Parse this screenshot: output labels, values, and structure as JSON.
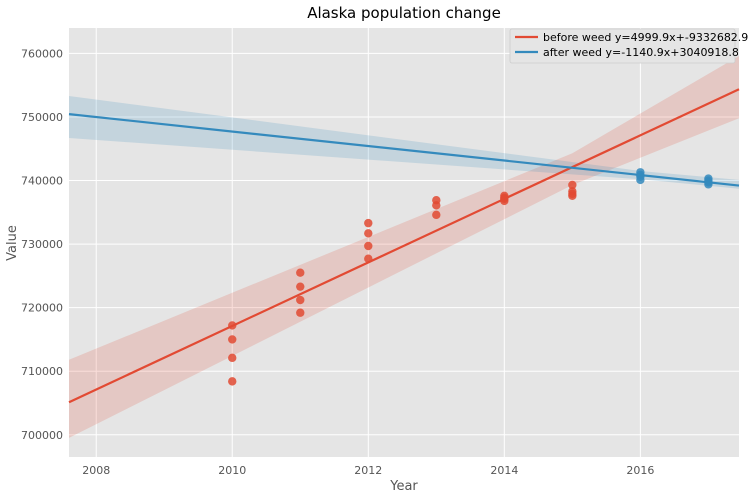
{
  "chart_data": {
    "type": "scatter",
    "title": "Alaska population change",
    "xlabel": "Year",
    "ylabel": "Value",
    "xlim": [
      2007.6,
      2017.45
    ],
    "ylim": [
      696500,
      764000
    ],
    "x_ticks": [
      2008,
      2010,
      2012,
      2014,
      2016
    ],
    "y_ticks": [
      700000,
      710000,
      720000,
      730000,
      740000,
      750000,
      760000
    ],
    "grid": true,
    "legend_position": "top-right",
    "series": [
      {
        "name": "before weed y=4999.9x+-9332682.9",
        "color": "#E24A33",
        "points": [
          [
            2010,
            717200
          ],
          [
            2010,
            715000
          ],
          [
            2010,
            712100
          ],
          [
            2010,
            708400
          ],
          [
            2011,
            725500
          ],
          [
            2011,
            723300
          ],
          [
            2011,
            721200
          ],
          [
            2011,
            719200
          ],
          [
            2012,
            733300
          ],
          [
            2012,
            731700
          ],
          [
            2012,
            729700
          ],
          [
            2012,
            727700
          ],
          [
            2013,
            736900
          ],
          [
            2013,
            736100
          ],
          [
            2013,
            734600
          ],
          [
            2014,
            737600
          ],
          [
            2014,
            737300
          ],
          [
            2014,
            737100
          ],
          [
            2014,
            736800
          ],
          [
            2015,
            739300
          ],
          [
            2015,
            738300
          ],
          [
            2015,
            737900
          ],
          [
            2015,
            737600
          ]
        ],
        "fit": {
          "slope": 4999.9,
          "intercept": -9332682.9
        },
        "band": [
          [
            2007.6,
            699500,
            711800
          ],
          [
            2015,
            739300,
            744300
          ],
          [
            2017.45,
            749800,
            759600
          ]
        ]
      },
      {
        "name": "after weed y=-1140.9x+3040918.8",
        "color": "#348ABD",
        "points": [
          [
            2016,
            741300
          ],
          [
            2016,
            740900
          ],
          [
            2016,
            740600
          ],
          [
            2016,
            740100
          ],
          [
            2017,
            740300
          ],
          [
            2017,
            740000
          ],
          [
            2017,
            739700
          ],
          [
            2017,
            739400
          ]
        ],
        "fit": {
          "slope": -1140.9,
          "intercept": 3040918.8
        },
        "band": [
          [
            2007.6,
            746700,
            753300
          ],
          [
            2016,
            740200,
            741500
          ],
          [
            2017.45,
            738700,
            740100
          ]
        ]
      }
    ]
  }
}
